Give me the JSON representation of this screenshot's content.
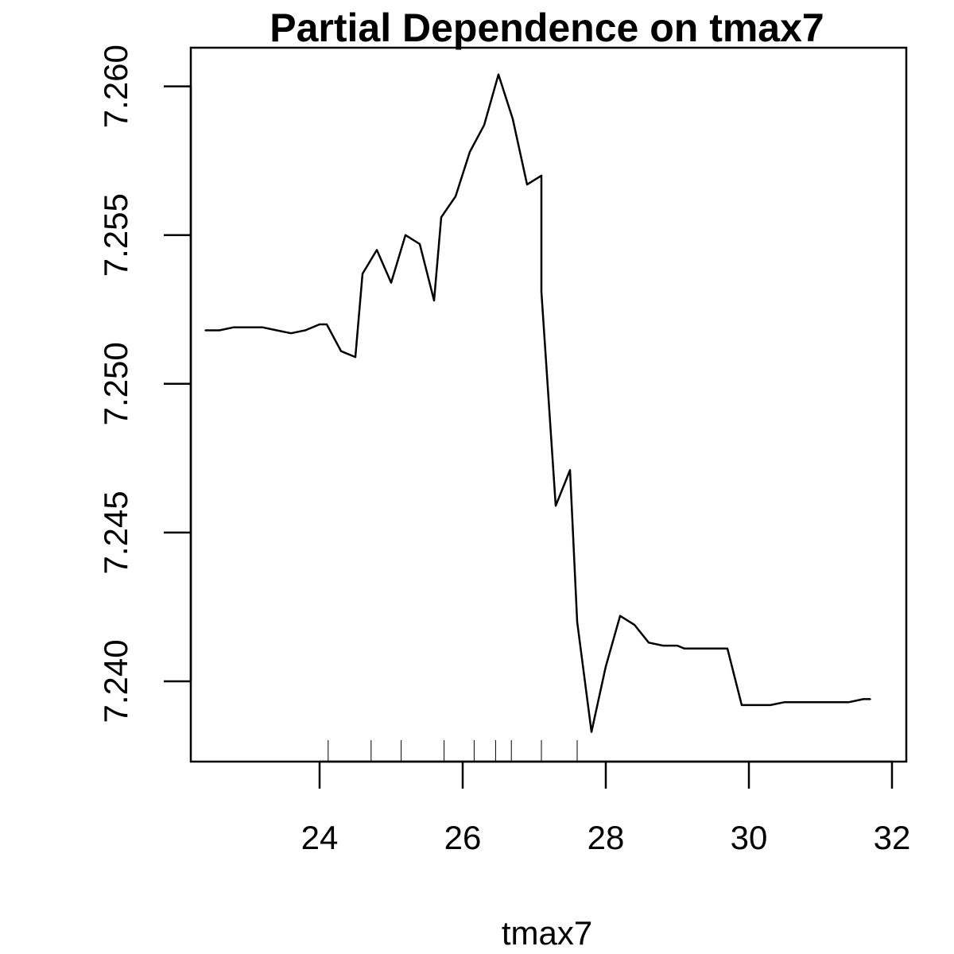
{
  "chart_data": {
    "type": "line",
    "title": "Partial Dependence on tmax7",
    "xlabel": "tmax7",
    "ylabel": "",
    "xlim": [
      22.2,
      32.2
    ],
    "ylim": [
      7.2373,
      7.2613
    ],
    "x_ticks": [
      24,
      26,
      28,
      30,
      32
    ],
    "y_ticks": [
      7.24,
      7.245,
      7.25,
      7.255,
      7.26
    ],
    "x_tick_labels": [
      "24",
      "26",
      "28",
      "30",
      "32"
    ],
    "y_tick_labels": [
      "7.240",
      "7.245",
      "7.250",
      "7.255",
      "7.260"
    ],
    "grid": false,
    "legend": "none",
    "line_color": "#000000",
    "series": [
      {
        "x": [
          22.4,
          22.6,
          22.8,
          23.0,
          23.2,
          23.4,
          23.6,
          23.8,
          24.0,
          24.1,
          24.3,
          24.5,
          24.6,
          24.8,
          25.0,
          25.2,
          25.4,
          25.6,
          25.7,
          25.9,
          26.1,
          26.3,
          26.5,
          26.7,
          26.9,
          27.1,
          27.1,
          27.3,
          27.5,
          27.6,
          27.8,
          28.0,
          28.2,
          28.4,
          28.6,
          28.8,
          29.0,
          29.1,
          29.3,
          29.5,
          29.7,
          29.9,
          30.1,
          30.3,
          30.5,
          30.7,
          30.8,
          31.0,
          31.2,
          31.4,
          31.6,
          31.7
        ],
        "y": [
          7.2518,
          7.2518,
          7.2519,
          7.2519,
          7.2519,
          7.2518,
          7.2517,
          7.2518,
          7.252,
          7.252,
          7.2511,
          7.2509,
          7.2537,
          7.2545,
          7.2534,
          7.255,
          7.2547,
          7.2528,
          7.2556,
          7.2563,
          7.2578,
          7.2587,
          7.2604,
          7.2589,
          7.2567,
          7.257,
          7.2531,
          7.2459,
          7.2471,
          7.242,
          7.2383,
          7.2405,
          7.2422,
          7.2419,
          7.2413,
          7.2412,
          7.2412,
          7.2411,
          7.2411,
          7.2411,
          7.2411,
          7.2392,
          7.2392,
          7.2392,
          7.2393,
          7.2393,
          7.2393,
          7.2393,
          7.2393,
          7.2393,
          7.2394,
          7.2394
        ]
      }
    ],
    "rug": [
      24.12,
      24.72,
      25.14,
      25.74,
      26.16,
      26.46,
      26.68,
      27.1,
      27.6
    ]
  }
}
